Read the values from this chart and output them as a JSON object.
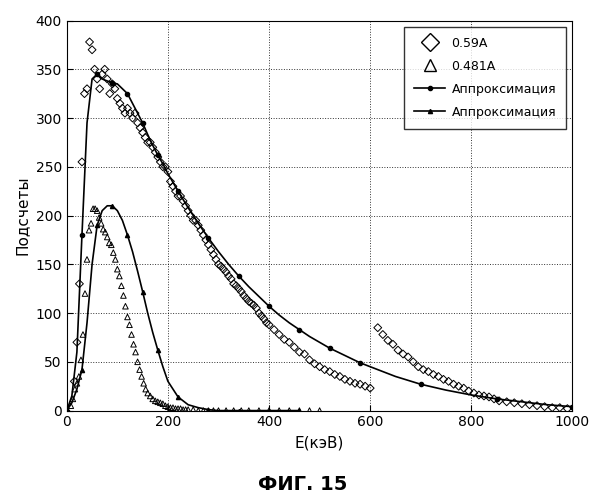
{
  "title": "ФИГ. 15",
  "xlabel": "E(кэВ)",
  "ylabel": "Подсчеты",
  "xlim": [
    0,
    1000
  ],
  "ylim": [
    0,
    400
  ],
  "xticks": [
    0,
    200,
    400,
    600,
    800,
    1000
  ],
  "yticks": [
    0,
    50,
    100,
    150,
    200,
    250,
    300,
    350,
    400
  ],
  "legend_labels": [
    "0.59A",
    "0.481A",
    "Аппроксимация",
    "Аппроксимация"
  ],
  "background_color": "#ffffff",
  "scatter1_x": [
    15,
    20,
    25,
    30,
    35,
    40,
    45,
    50,
    55,
    60,
    65,
    70,
    75,
    80,
    85,
    90,
    95,
    100,
    105,
    110,
    115,
    120,
    125,
    130,
    135,
    140,
    145,
    150,
    155,
    160,
    165,
    170,
    175,
    180,
    185,
    190,
    195,
    200,
    205,
    210,
    215,
    220,
    225,
    230,
    235,
    240,
    245,
    250,
    255,
    260,
    265,
    270,
    275,
    280,
    285,
    290,
    295,
    300,
    305,
    310,
    315,
    320,
    325,
    330,
    335,
    340,
    345,
    350,
    355,
    360,
    365,
    370,
    375,
    380,
    385,
    390,
    395,
    400,
    410,
    420,
    430,
    440,
    450,
    460,
    470,
    480,
    490,
    500,
    510,
    520,
    530,
    540,
    550,
    560,
    570,
    580,
    590,
    600,
    615,
    625,
    635,
    645,
    655,
    665,
    675,
    685,
    695,
    705,
    715,
    725,
    735,
    745,
    755,
    765,
    775,
    785,
    795,
    805,
    815,
    825,
    835,
    845,
    855,
    870,
    885,
    900,
    915,
    930,
    945,
    960,
    975,
    990
  ],
  "scatter1_y": [
    30,
    70,
    130,
    255,
    325,
    330,
    378,
    370,
    350,
    340,
    330,
    345,
    350,
    340,
    325,
    335,
    330,
    320,
    315,
    310,
    305,
    310,
    305,
    300,
    305,
    295,
    290,
    285,
    280,
    275,
    275,
    270,
    265,
    260,
    255,
    250,
    250,
    245,
    235,
    230,
    225,
    220,
    220,
    215,
    210,
    205,
    200,
    195,
    195,
    190,
    185,
    180,
    175,
    170,
    165,
    160,
    155,
    150,
    148,
    145,
    142,
    138,
    135,
    130,
    128,
    125,
    122,
    118,
    115,
    112,
    110,
    108,
    105,
    100,
    97,
    94,
    90,
    88,
    83,
    78,
    73,
    70,
    65,
    60,
    58,
    52,
    48,
    45,
    42,
    40,
    37,
    35,
    32,
    30,
    28,
    27,
    25,
    23,
    85,
    78,
    72,
    68,
    62,
    58,
    55,
    50,
    45,
    42,
    40,
    37,
    35,
    32,
    30,
    27,
    25,
    23,
    20,
    18,
    16,
    15,
    14,
    12,
    10,
    9,
    8,
    7,
    6,
    5,
    4,
    3,
    3,
    2
  ],
  "scatter2_x": [
    8,
    12,
    16,
    20,
    24,
    28,
    32,
    36,
    40,
    44,
    48,
    52,
    56,
    60,
    64,
    68,
    72,
    76,
    80,
    84,
    88,
    92,
    96,
    100,
    104,
    108,
    112,
    116,
    120,
    124,
    128,
    132,
    136,
    140,
    144,
    148,
    152,
    156,
    160,
    165,
    170,
    175,
    180,
    185,
    190,
    195,
    200,
    205,
    210,
    215,
    220,
    225,
    230,
    235,
    240,
    250,
    260,
    270,
    280,
    290,
    300,
    315,
    330,
    345,
    360,
    380,
    400,
    420,
    440,
    460,
    480,
    500
  ],
  "scatter2_y": [
    5,
    12,
    22,
    28,
    35,
    52,
    78,
    120,
    155,
    185,
    192,
    207,
    207,
    205,
    198,
    192,
    186,
    183,
    178,
    172,
    170,
    162,
    155,
    145,
    138,
    128,
    118,
    107,
    96,
    88,
    78,
    68,
    60,
    50,
    42,
    35,
    28,
    22,
    18,
    15,
    12,
    10,
    9,
    8,
    7,
    5,
    4,
    3,
    3,
    2,
    2,
    2,
    1,
    1,
    1,
    1,
    0,
    0,
    0,
    0,
    0,
    0,
    0,
    0,
    0,
    0,
    0,
    0,
    0,
    0,
    0,
    0
  ],
  "approx1_x": [
    0,
    10,
    20,
    30,
    40,
    50,
    60,
    70,
    80,
    90,
    100,
    110,
    120,
    130,
    140,
    150,
    160,
    170,
    180,
    190,
    200,
    220,
    240,
    260,
    280,
    300,
    320,
    340,
    360,
    380,
    400,
    420,
    440,
    460,
    480,
    500,
    520,
    540,
    560,
    580,
    600,
    650,
    700,
    750,
    800,
    850,
    900,
    950,
    1000
  ],
  "approx1_y": [
    0,
    15,
    60,
    180,
    295,
    340,
    345,
    340,
    338,
    336,
    335,
    330,
    325,
    315,
    305,
    295,
    283,
    272,
    262,
    253,
    243,
    225,
    208,
    192,
    177,
    163,
    150,
    138,
    127,
    117,
    107,
    98,
    90,
    83,
    76,
    70,
    64,
    59,
    54,
    49,
    45,
    35,
    27,
    21,
    16,
    12,
    9,
    6,
    4
  ],
  "approx2_x": [
    0,
    10,
    20,
    30,
    40,
    50,
    60,
    70,
    80,
    90,
    100,
    110,
    120,
    130,
    140,
    150,
    160,
    170,
    180,
    190,
    200,
    220,
    240,
    260,
    280,
    300,
    320,
    340,
    360,
    380,
    400,
    420,
    440,
    460
  ],
  "approx2_y": [
    0,
    8,
    22,
    42,
    90,
    150,
    190,
    205,
    210,
    210,
    205,
    195,
    180,
    163,
    143,
    122,
    100,
    80,
    62,
    45,
    30,
    14,
    6,
    3,
    1,
    0,
    0,
    0,
    0,
    0,
    0,
    0,
    0,
    0
  ]
}
